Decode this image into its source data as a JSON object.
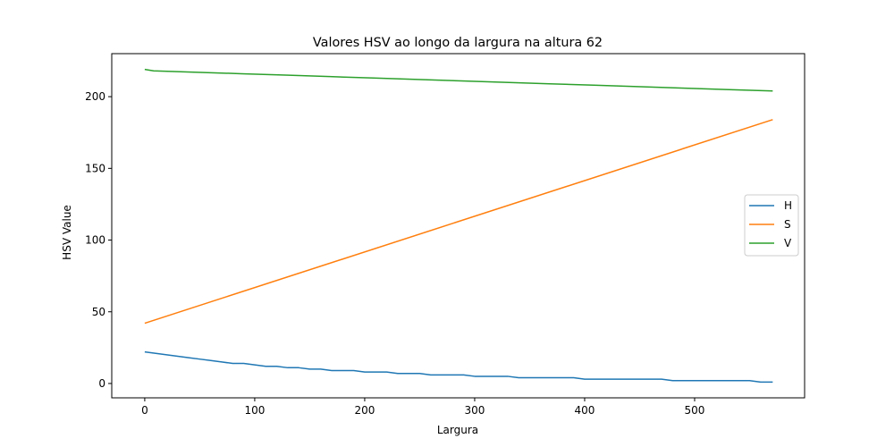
{
  "chart_data": {
    "type": "line",
    "title": "Valores HSV ao longo da largura na altura 62",
    "xlabel": "Largura",
    "ylabel": "HSV Value",
    "xlim": [
      -30,
      600
    ],
    "ylim": [
      -10,
      230
    ],
    "xticks": [
      0,
      100,
      200,
      300,
      400,
      500
    ],
    "yticks": [
      0,
      50,
      100,
      150,
      200
    ],
    "grid": false,
    "legend_position": "center-right",
    "series": [
      {
        "name": "H",
        "color": "#1f77b4",
        "x": [
          0,
          10,
          20,
          30,
          40,
          50,
          60,
          70,
          80,
          90,
          100,
          110,
          120,
          130,
          140,
          150,
          160,
          170,
          180,
          190,
          200,
          210,
          220,
          230,
          240,
          250,
          260,
          270,
          280,
          290,
          300,
          310,
          320,
          330,
          340,
          350,
          360,
          370,
          380,
          390,
          400,
          410,
          420,
          430,
          440,
          450,
          460,
          470,
          480,
          490,
          500,
          510,
          520,
          530,
          540,
          550,
          560,
          571
        ],
        "values": [
          22,
          21,
          20,
          19,
          18,
          17,
          16,
          15,
          14,
          14,
          13,
          12,
          12,
          11,
          11,
          10,
          10,
          9,
          9,
          9,
          8,
          8,
          8,
          7,
          7,
          7,
          6,
          6,
          6,
          6,
          5,
          5,
          5,
          5,
          4,
          4,
          4,
          4,
          4,
          4,
          3,
          3,
          3,
          3,
          3,
          3,
          3,
          3,
          2,
          2,
          2,
          2,
          2,
          2,
          2,
          2,
          1,
          1
        ]
      },
      {
        "name": "S",
        "color": "#ff7f0e",
        "x": [
          0,
          571
        ],
        "values": [
          42,
          184
        ]
      },
      {
        "name": "V",
        "color": "#2ca02c",
        "x": [
          0,
          8,
          48,
          88,
          128,
          168,
          208,
          248,
          288,
          328,
          368,
          408,
          448,
          488,
          528,
          571
        ],
        "values": [
          219,
          218,
          217,
          216,
          215,
          214,
          213,
          212,
          211,
          210,
          209,
          208,
          207,
          206,
          205,
          204
        ]
      }
    ]
  }
}
